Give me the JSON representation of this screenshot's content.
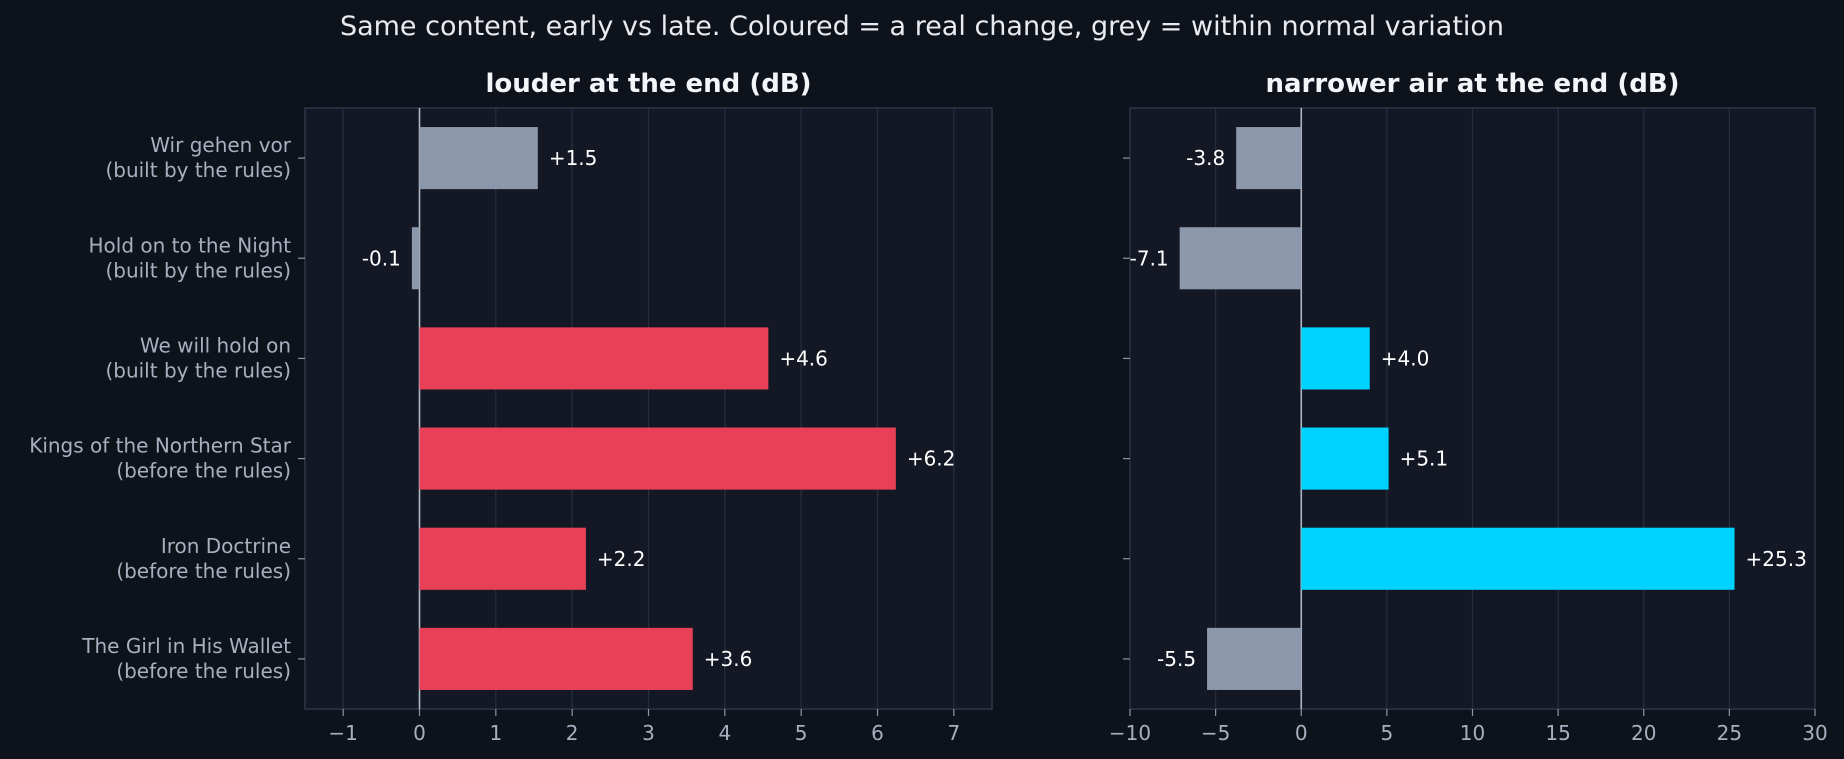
{
  "suptitle": "Same content, early vs late. Coloured = a real change, grey = within normal variation",
  "colors": {
    "background": "#0e121b",
    "plot_bg": "#131824",
    "neutral": "#8b98ab",
    "loud_change": "#e84057",
    "air_change": "#00d2ff"
  },
  "chart_data": [
    {
      "type": "bar",
      "orientation": "horizontal",
      "title": "louder at the end (dB)",
      "categories": [
        [
          "Wir gehen vor",
          "(built by the rules)"
        ],
        [
          "Hold on to the Night",
          "(built by the rules)"
        ],
        [
          "We will hold on",
          "(built by the rules)"
        ],
        [
          "Kings of the Northern Star",
          "(before the rules)"
        ],
        [
          "Iron Doctrine",
          "(before the rules)"
        ],
        [
          "The Girl in His Wallet",
          "(before the rules)"
        ]
      ],
      "values": [
        1.55,
        -0.1,
        4.57,
        6.24,
        2.18,
        3.58
      ],
      "value_labels": [
        "+1.5",
        "-0.1",
        "+4.6",
        "+6.2",
        "+2.2",
        "+3.6"
      ],
      "real_change": [
        false,
        false,
        true,
        true,
        true,
        true
      ],
      "xlim": [
        -1.5,
        7.5
      ],
      "xticks": [
        -1,
        0,
        1,
        2,
        3,
        4,
        5,
        6,
        7
      ],
      "xtick_labels": [
        "−1",
        "0",
        "1",
        "2",
        "3",
        "4",
        "5",
        "6",
        "7"
      ],
      "grid": true
    },
    {
      "type": "bar",
      "orientation": "horizontal",
      "title": "narrower air at the end (dB)",
      "categories": [
        [
          "Wir gehen vor",
          "(built by the rules)"
        ],
        [
          "Hold on to the Night",
          "(built by the rules)"
        ],
        [
          "We will hold on",
          "(built by the rules)"
        ],
        [
          "Kings of the Northern Star",
          "(before the rules)"
        ],
        [
          "Iron Doctrine",
          "(before the rules)"
        ],
        [
          "The Girl in His Wallet",
          "(before the rules)"
        ]
      ],
      "values": [
        -3.8,
        -7.1,
        4.0,
        5.1,
        25.3,
        -5.5
      ],
      "value_labels": [
        "-3.8",
        "-7.1",
        "+4.0",
        "+5.1",
        "+25.3",
        "-5.5"
      ],
      "real_change": [
        false,
        false,
        true,
        true,
        true,
        false
      ],
      "xlim": [
        -10,
        30
      ],
      "xticks": [
        -10,
        -5,
        0,
        5,
        10,
        15,
        20,
        25,
        30
      ],
      "xtick_labels": [
        "−10",
        "−5",
        "0",
        "5",
        "10",
        "15",
        "20",
        "25",
        "30"
      ],
      "grid": true
    }
  ]
}
